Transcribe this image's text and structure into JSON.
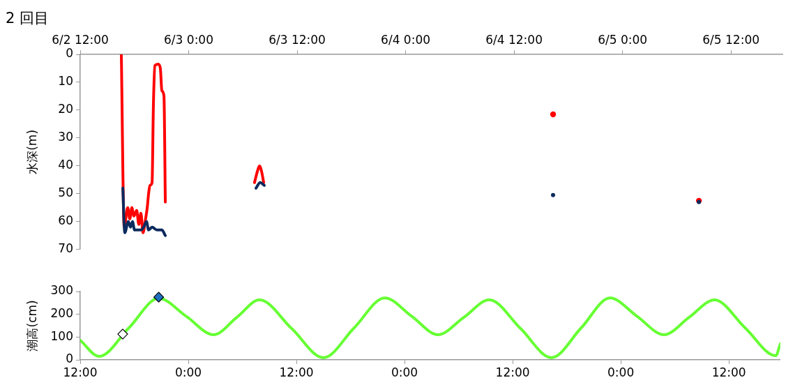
{
  "chart_data": [
    {
      "type": "line",
      "title": "2 回目",
      "ylabel": "水深(m)",
      "xlim": [
        "--06-02T12:00",
        "--06-05T17:42"
      ],
      "xticks": [
        {
          "value": "--06-02T12:00",
          "label": "6/2 12:00"
        },
        {
          "value": "--06-03T00:00",
          "label": "6/3 0:00"
        },
        {
          "value": "--06-03T12:00",
          "label": "6/3 12:00"
        },
        {
          "value": "--06-04T00:00",
          "label": "6/4 0:00"
        },
        {
          "value": "--06-04T12:00",
          "label": "6/4 12:00"
        },
        {
          "value": "--06-05T00:00",
          "label": "6/5 0:00"
        },
        {
          "value": "--06-05T12:00",
          "label": "6/5 12:00"
        }
      ],
      "ylim": [
        70,
        0
      ],
      "yticks": [
        0,
        10,
        20,
        30,
        40,
        50,
        60,
        70
      ],
      "series": [
        {
          "color": "#ff0000",
          "x": [
            "--06-02T16:33",
            "--06-02T16:52",
            "--06-02T17:15",
            "--06-02T17:29",
            "--06-02T17:43",
            "--06-02T17:56",
            "--06-02T18:15",
            "--06-02T18:29",
            "--06-02T18:43",
            "--06-02T18:57",
            "--06-02T19:11",
            "--06-02T19:25",
            "--06-02T19:34",
            "--06-02T19:43",
            "--06-02T19:57",
            "--06-02T20:06",
            "--06-02T20:16",
            "--06-02T20:38",
            "--06-02T20:52",
            "--06-02T21:02",
            "--06-02T21:16",
            "--06-02T21:25",
            "--06-03T02:00",
            "--06-03T07:17",
            "--06-03T07:36",
            "--06-03T07:50",
            "--06-03T08:04",
            "--06-03T08:18"
          ],
          "values": [
            0,
            62,
            55,
            59,
            55,
            58,
            56,
            61,
            57,
            64,
            60,
            55,
            50,
            47,
            46,
            18,
            4,
            3.5,
            5,
            13,
            15,
            53,
            null,
            46,
            42,
            40,
            42,
            46
          ]
        },
        {
          "color": "#0c2a5e",
          "x": [
            "--06-02T16:43",
            "--06-02T16:56",
            "--06-02T17:19",
            "--06-02T17:34",
            "--06-02T17:47",
            "--06-02T18:01",
            "--06-02T18:25",
            "--06-02T18:43",
            "--06-02T19:01",
            "--06-02T19:20",
            "--06-02T19:34",
            "--06-02T19:57",
            "--06-02T20:29",
            "--06-02T21:02",
            "--06-02T21:25",
            "--06-03T02:00",
            "--06-03T07:27",
            "--06-03T07:55",
            "--06-03T08:22"
          ],
          "values": [
            48,
            64,
            60,
            62,
            60,
            63,
            63,
            63,
            62,
            60,
            63,
            62,
            63,
            63,
            65,
            null,
            48,
            46,
            47
          ]
        },
        {
          "type": "scatter",
          "marker": "circle",
          "color": "#ff0000",
          "x": [
            "--06-04T16:19",
            "--06-05T08:27"
          ],
          "values": [
            21.5,
            52.5
          ]
        },
        {
          "type": "scatter",
          "marker": "circle",
          "color": "#0c2a5e",
          "x": [
            "--06-04T16:19",
            "--06-05T08:27"
          ],
          "values": [
            50.5,
            53
          ]
        }
      ]
    },
    {
      "type": "line",
      "ylabel": "潮高(cm)",
      "xlim": [
        "--06-02T12:00",
        "--06-05T17:42"
      ],
      "xticks": [
        {
          "value": "--06-02T12:00",
          "label": "12:00"
        },
        {
          "value": "--06-03T00:00",
          "label": "0:00"
        },
        {
          "value": "--06-03T12:00",
          "label": "12:00"
        },
        {
          "value": "--06-04T00:00",
          "label": "0:00"
        },
        {
          "value": "--06-04T12:00",
          "label": "12:00"
        },
        {
          "value": "--06-05T00:00",
          "label": "0:00"
        },
        {
          "value": "--06-05T12:00",
          "label": "12:00"
        }
      ],
      "ylim": [
        0,
        300
      ],
      "yticks": [
        0,
        100,
        200,
        300
      ],
      "series": [
        {
          "color": "#66ff33",
          "x": [
            "--06-02T12:00",
            "--06-02T14:06",
            "--06-02T17:24",
            "--06-02T20:42",
            "--06-02T23:48",
            "--06-03T02:48",
            "--06-03T05:24",
            "--06-03T07:54",
            "--06-03T11:30",
            "--06-03T15:00",
            "--06-03T18:24",
            "--06-03T21:48",
            "--06-04T00:48",
            "--06-04T03:42",
            "--06-04T06:36",
            "--06-04T09:24",
            "--06-04T12:54",
            "--06-04T16:18",
            "--06-04T19:36",
            "--06-04T22:48",
            "--06-05T01:48",
            "--06-05T04:48",
            "--06-05T07:36",
            "--06-05T10:24",
            "--06-05T13:48",
            "--06-05T17:12",
            "--06-05T17:42"
          ],
          "values": [
            86,
            15,
            140,
            270,
            190,
            110,
            187,
            263,
            136,
            9,
            140,
            272,
            191,
            110,
            187,
            263,
            136,
            9,
            140,
            272,
            191,
            110,
            187,
            263,
            140,
            18,
            70
          ]
        },
        {
          "type": "scatter",
          "marker": "diamond",
          "x": [
            "--06-02T16:43",
            "--06-02T20:43"
          ],
          "values": [
            113,
            275
          ],
          "colors": [
            "#ffffff",
            "#1f6fbf"
          ]
        }
      ]
    }
  ]
}
